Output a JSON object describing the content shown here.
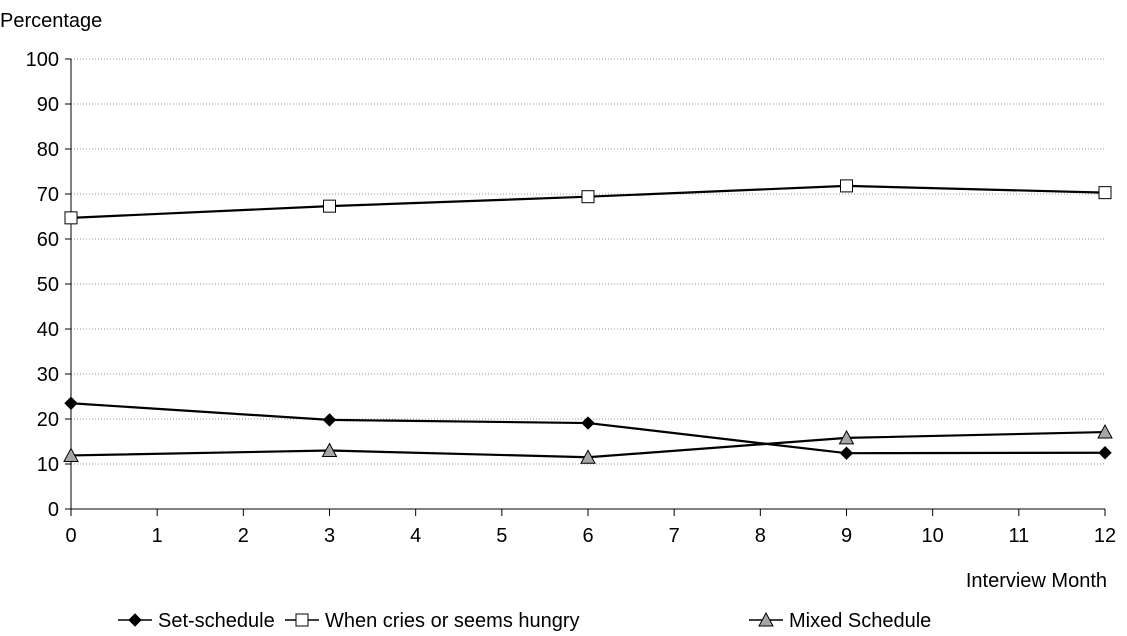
{
  "chart_data": {
    "type": "line",
    "ylabel": "Percentage",
    "xlabel": "Interview Month",
    "x": [
      0,
      3,
      6,
      9,
      12
    ],
    "xlim": [
      0,
      12
    ],
    "xticks": [
      "0",
      "1",
      "2",
      "3",
      "4",
      "5",
      "6",
      "7",
      "8",
      "9",
      "10",
      "11",
      "12"
    ],
    "ylim": [
      0,
      100
    ],
    "yticks": [
      "0",
      "10",
      "20",
      "30",
      "40",
      "50",
      "60",
      "70",
      "80",
      "90",
      "100"
    ],
    "grid": "horizontal dotted",
    "legend_position": "bottom",
    "series": [
      {
        "name": "Set-schedule",
        "marker": "filled-diamond",
        "marker_color": "#000000",
        "values": [
          23.5,
          19.8,
          19.1,
          12.4,
          12.5
        ]
      },
      {
        "name": "When cries or seems hungry",
        "marker": "open-square",
        "marker_color": "#ffffff",
        "values": [
          64.7,
          67.3,
          69.4,
          71.8,
          70.3
        ]
      },
      {
        "name": "Mixed Schedule",
        "marker": "gray-triangle",
        "marker_color": "#a6a6a6",
        "values": [
          11.9,
          13.0,
          11.5,
          15.8,
          17.1
        ]
      }
    ]
  }
}
